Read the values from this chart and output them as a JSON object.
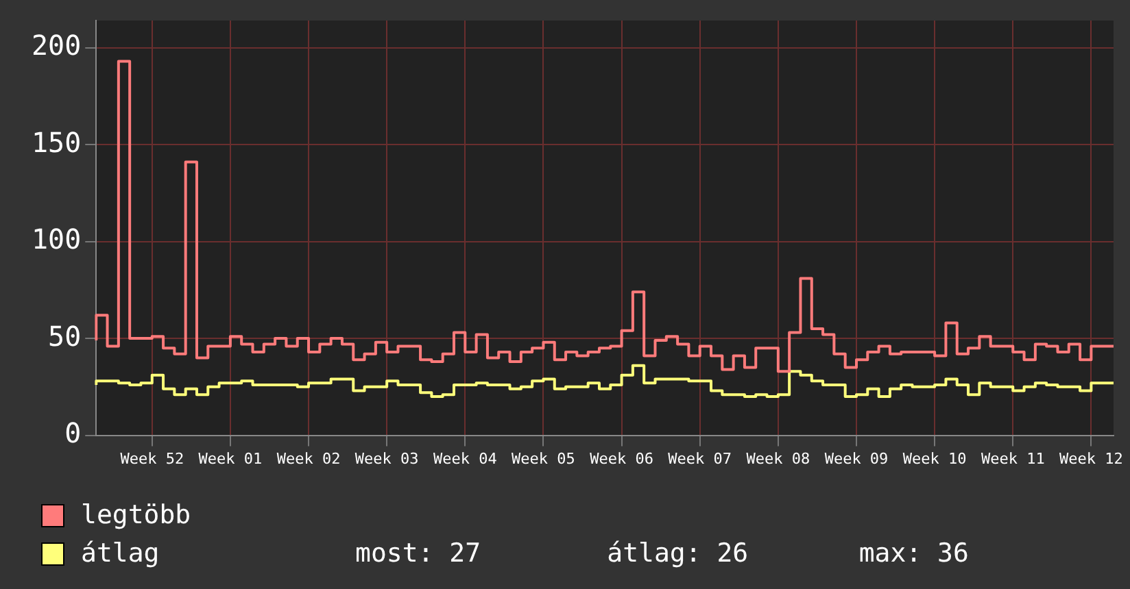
{
  "chart_data": {
    "type": "step",
    "categories": [
      null,
      null,
      null,
      null,
      null,
      "Week 52",
      null,
      null,
      null,
      null,
      null,
      null,
      "Week 01",
      null,
      null,
      null,
      null,
      null,
      null,
      "Week 02",
      null,
      null,
      null,
      null,
      null,
      null,
      "Week 03",
      null,
      null,
      null,
      null,
      null,
      null,
      "Week 04",
      null,
      null,
      null,
      null,
      null,
      null,
      "Week 05",
      null,
      null,
      null,
      null,
      null,
      null,
      "Week 06",
      null,
      null,
      null,
      null,
      null,
      null,
      "Week 07",
      null,
      null,
      null,
      null,
      null,
      null,
      "Week 08",
      null,
      null,
      null,
      null,
      null,
      null,
      "Week 09",
      null,
      null,
      null,
      null,
      null,
      null,
      "Week 10",
      null,
      null,
      null,
      null,
      null,
      null,
      "Week 11",
      null,
      null,
      null,
      null,
      null,
      null,
      "Week 12",
      null,
      null
    ],
    "series": [
      {
        "name": "legtöbb",
        "color": "#ff7b7b",
        "values": [
          49,
          62,
          46,
          193,
          50,
          50,
          51,
          45,
          42,
          141,
          40,
          46,
          46,
          51,
          47,
          43,
          47,
          50,
          46,
          50,
          43,
          47,
          50,
          47,
          39,
          42,
          48,
          43,
          46,
          46,
          39,
          38,
          42,
          53,
          43,
          52,
          40,
          43,
          38,
          43,
          45,
          48,
          39,
          43,
          41,
          43,
          45,
          46,
          54,
          74,
          41,
          49,
          51,
          47,
          41,
          46,
          41,
          34,
          41,
          35,
          45,
          45,
          33,
          53,
          81,
          55,
          52,
          42,
          35,
          39,
          43,
          46,
          42,
          43,
          43,
          43,
          41,
          58,
          42,
          45,
          51,
          46,
          46,
          43,
          39,
          47,
          46,
          43,
          47,
          39,
          46,
          46
        ]
      },
      {
        "name": "átlag",
        "color": "#ffff7b",
        "values": [
          26,
          28,
          28,
          27,
          26,
          27,
          31,
          24,
          21,
          24,
          21,
          25,
          27,
          27,
          28,
          26,
          26,
          26,
          26,
          25,
          27,
          27,
          29,
          29,
          23,
          25,
          25,
          28,
          26,
          26,
          22,
          20,
          21,
          26,
          26,
          27,
          26,
          26,
          24,
          25,
          28,
          29,
          24,
          25,
          25,
          27,
          24,
          26,
          31,
          36,
          27,
          29,
          29,
          29,
          28,
          28,
          23,
          21,
          21,
          20,
          21,
          20,
          21,
          33,
          31,
          28,
          26,
          26,
          20,
          21,
          24,
          20,
          24,
          26,
          25,
          25,
          26,
          29,
          26,
          21,
          27,
          25,
          25,
          23,
          25,
          27,
          26,
          25,
          25,
          23,
          27,
          27
        ]
      }
    ],
    "ylim": [
      0,
      214
    ],
    "yticks": [
      0,
      50,
      100,
      150,
      200
    ],
    "grid": true,
    "legend": "bottom left",
    "annotations": [
      "most: 27",
      "átlag: 26",
      "max: 36"
    ]
  }
}
